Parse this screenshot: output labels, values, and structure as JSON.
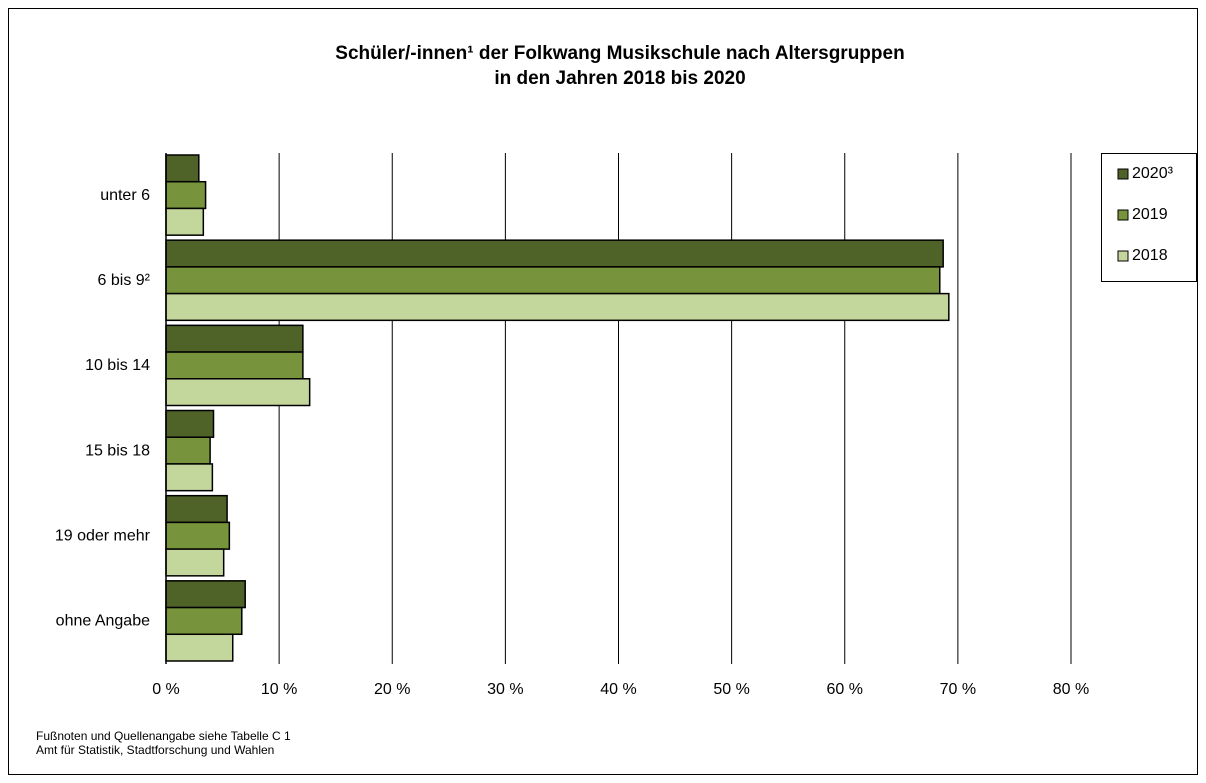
{
  "chart_data": {
    "type": "barh",
    "title": [
      "Schüler/-innen¹ der Folkwang Musikschule nach Altersgruppen",
      "in den Jahren 2018 bis 2020"
    ],
    "categories": [
      "unter 6",
      "6 bis 9²",
      "10 bis 14",
      "15 bis 18",
      "19 oder mehr",
      "ohne Angabe"
    ],
    "series": [
      {
        "name": "2020³",
        "color": "#4f6228",
        "values": [
          2.9,
          68.7,
          12.1,
          4.2,
          5.4,
          7.0
        ]
      },
      {
        "name": "2019",
        "color": "#77933c",
        "values": [
          3.5,
          68.4,
          12.1,
          3.9,
          5.6,
          6.7
        ]
      },
      {
        "name": "2018",
        "color": "#c3d69b",
        "values": [
          3.3,
          69.2,
          12.7,
          4.1,
          5.1,
          5.9
        ]
      }
    ],
    "xlim": [
      0,
      80
    ],
    "xticks": [
      {
        "value": 0,
        "label": "0 %"
      },
      {
        "value": 10,
        "label": "10 %"
      },
      {
        "value": 20,
        "label": "20 %"
      },
      {
        "value": 30,
        "label": "30 %"
      },
      {
        "value": 40,
        "label": "40 %"
      },
      {
        "value": 50,
        "label": "50 %"
      },
      {
        "value": 60,
        "label": "60 %"
      },
      {
        "value": 70,
        "label": "70 %"
      },
      {
        "value": 80,
        "label": "80 %"
      }
    ],
    "grid": true,
    "legend": "right",
    "footer": [
      "Fußnoten und Quellenangabe siehe Tabelle C 1",
      "Amt für Statistik, Stadtforschung und Wahlen"
    ]
  }
}
